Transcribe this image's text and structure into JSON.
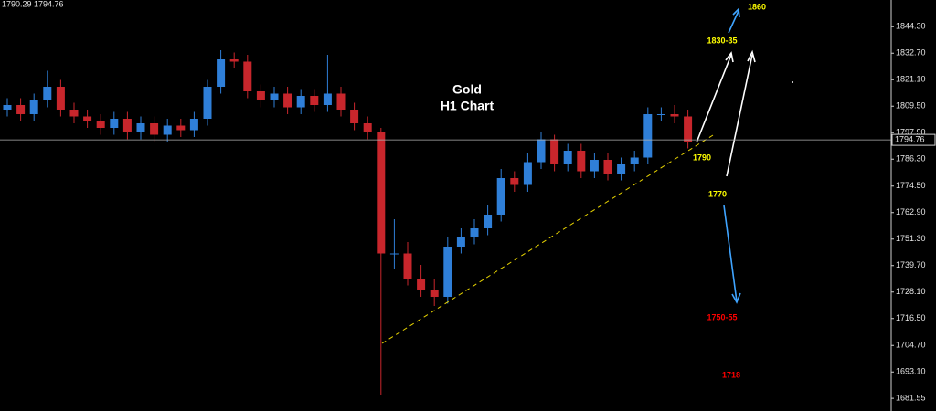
{
  "chart_data": {
    "type": "candlestick",
    "header": "1790.29 1794.76",
    "title": "Gold",
    "subtitle": "H1 Chart",
    "up_color": "#2f7fd8",
    "down_color": "#c8262c",
    "ylim": [
      1676,
      1856
    ],
    "yticks": [
      {
        "value": 1844.3,
        "label": "1844.30"
      },
      {
        "value": 1832.7,
        "label": "1832.70"
      },
      {
        "value": 1821.1,
        "label": "1821.10"
      },
      {
        "value": 1809.5,
        "label": "1809.50"
      },
      {
        "value": 1797.9,
        "label": "1797.90"
      },
      {
        "value": 1786.3,
        "label": "1786.30"
      },
      {
        "value": 1774.5,
        "label": "1774.50"
      },
      {
        "value": 1762.9,
        "label": "1762.90"
      },
      {
        "value": 1751.3,
        "label": "1751.30"
      },
      {
        "value": 1739.7,
        "label": "1739.70"
      },
      {
        "value": 1728.1,
        "label": "1728.10"
      },
      {
        "value": 1716.5,
        "label": "1716.50"
      },
      {
        "value": 1704.7,
        "label": "1704.70"
      },
      {
        "value": 1693.1,
        "label": "1693.10"
      },
      {
        "value": 1681.55,
        "label": "1681.55"
      }
    ],
    "current_price": 1794.76,
    "open": [
      1808,
      1810,
      1806,
      1812,
      1818,
      1808,
      1805,
      1803,
      1800,
      1804,
      1798,
      1802,
      1797,
      1801,
      1799,
      1804,
      1818,
      1830,
      1829,
      1816,
      1812,
      1815,
      1809,
      1814,
      1810,
      1815,
      1808,
      1802,
      1798,
      1745,
      1745,
      1734,
      1729,
      1726,
      1748,
      1752,
      1756,
      1762,
      1778,
      1775,
      1785,
      1795,
      1784,
      1790,
      1781,
      1786,
      1780,
      1784,
      1787,
      1806,
      1806,
      1805
    ],
    "high": [
      1813,
      1813,
      1815,
      1825,
      1821,
      1811,
      1808,
      1806,
      1807,
      1807,
      1805,
      1805,
      1804,
      1804,
      1807,
      1821,
      1834,
      1833,
      1832,
      1819,
      1818,
      1818,
      1817,
      1817,
      1832,
      1818,
      1811,
      1805,
      1800,
      1760,
      1750,
      1740,
      1734,
      1752,
      1756,
      1760,
      1766,
      1782,
      1781,
      1789,
      1798,
      1797,
      1793,
      1793,
      1789,
      1789,
      1787,
      1790,
      1809,
      1809,
      1810,
      1808
    ],
    "low": [
      1805,
      1803,
      1803,
      1809,
      1805,
      1802,
      1800,
      1797,
      1797,
      1795,
      1795,
      1794,
      1794,
      1796,
      1796,
      1801,
      1815,
      1826,
      1813,
      1809,
      1809,
      1806,
      1806,
      1807,
      1807,
      1805,
      1799,
      1795,
      1683,
      1738,
      1731,
      1726,
      1722,
      1723,
      1745,
      1749,
      1753,
      1759,
      1772,
      1772,
      1782,
      1781,
      1781,
      1778,
      1778,
      1777,
      1777,
      1781,
      1784,
      1803,
      1802,
      1791
    ],
    "close": [
      1810,
      1806,
      1812,
      1818,
      1808,
      1805,
      1803,
      1800,
      1804,
      1798,
      1802,
      1797,
      1801,
      1799,
      1804,
      1818,
      1830,
      1829,
      1816,
      1812,
      1815,
      1809,
      1814,
      1810,
      1815,
      1808,
      1802,
      1798,
      1745,
      1745,
      1734,
      1729,
      1726,
      1748,
      1752,
      1756,
      1762,
      1778,
      1775,
      1785,
      1795,
      1784,
      1790,
      1781,
      1786,
      1780,
      1784,
      1787,
      1806,
      1806,
      1805,
      1794
    ],
    "annotations": [
      {
        "text": "1860",
        "color": "#ffff00"
      },
      {
        "text": "1830-35",
        "color": "#ffff00"
      },
      {
        "text": "1790",
        "color": "#ffff00"
      },
      {
        "text": "1770",
        "color": "#ffff00"
      },
      {
        "text": "1750-55",
        "color": "#ff0000"
      },
      {
        "text": "1718",
        "color": "#ff0000"
      }
    ]
  }
}
